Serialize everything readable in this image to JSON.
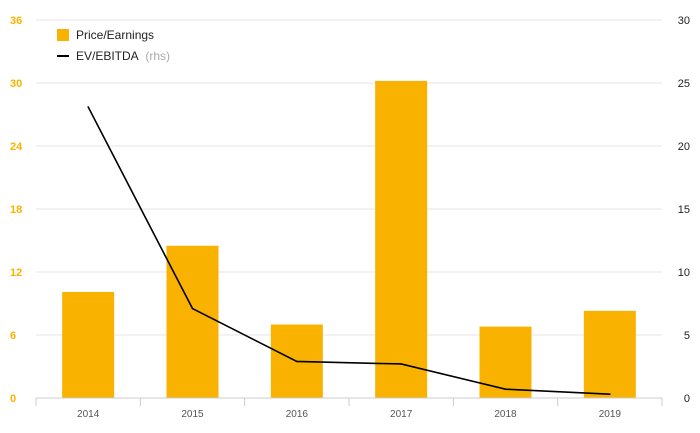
{
  "chart_data": {
    "type": "bar",
    "categories": [
      "2014",
      "2015",
      "2016",
      "2017",
      "2018",
      "2019"
    ],
    "series": [
      {
        "name": "Price/Earnings",
        "type": "bar",
        "axis": "left",
        "color": "#F9B200",
        "values": [
          10.1,
          14.5,
          7.0,
          30.2,
          6.8,
          8.3
        ]
      },
      {
        "name": "EV/EBITDA",
        "type": "line",
        "axis": "right",
        "color": "#000000",
        "values": [
          23.1,
          7.1,
          2.9,
          2.7,
          0.7,
          0.3
        ]
      }
    ],
    "legend": {
      "items": [
        {
          "label": "Price/Earnings",
          "note": "",
          "marker": "square"
        },
        {
          "label": "EV/EBITDA",
          "note": "(rhs)",
          "marker": "line"
        }
      ],
      "position": "top-left"
    },
    "y_left": {
      "min": 0,
      "max": 36,
      "ticks": [
        "0",
        "6",
        "12",
        "18",
        "24",
        "30",
        "36"
      ],
      "color": "#F9B200"
    },
    "y_right": {
      "min": 0,
      "max": 30,
      "ticks": [
        "0",
        "5",
        "10",
        "15",
        "20",
        "25",
        "30"
      ],
      "color": "#222222"
    },
    "grid": true,
    "title": "",
    "xlabel": "",
    "ylabel": ""
  }
}
